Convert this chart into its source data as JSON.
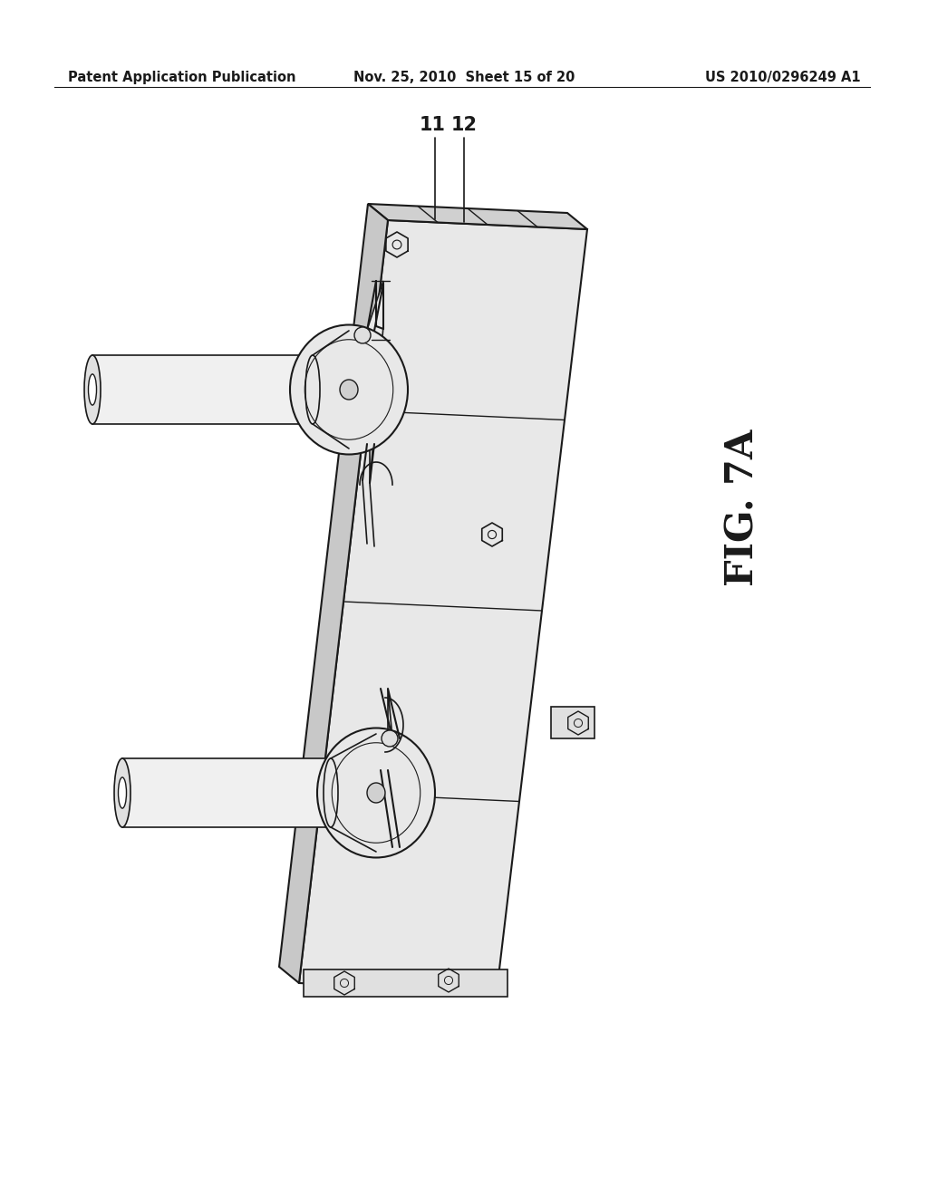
{
  "background_color": "#ffffff",
  "header_left": "Patent Application Publication",
  "header_center": "Nov. 25, 2010  Sheet 15 of 20",
  "header_right": "US 2010/0296249 A1",
  "figure_label": "FIG. 7A",
  "label_11": "11",
  "label_12": "12",
  "line_color": "#1a1a1a",
  "text_color": "#1a1a1a",
  "header_fontsize": 10.5,
  "label_fontsize": 15,
  "fig_label_fontsize": 30,
  "plate_color": "#f0f0f0",
  "plate_edge_color": "#1a1a1a"
}
